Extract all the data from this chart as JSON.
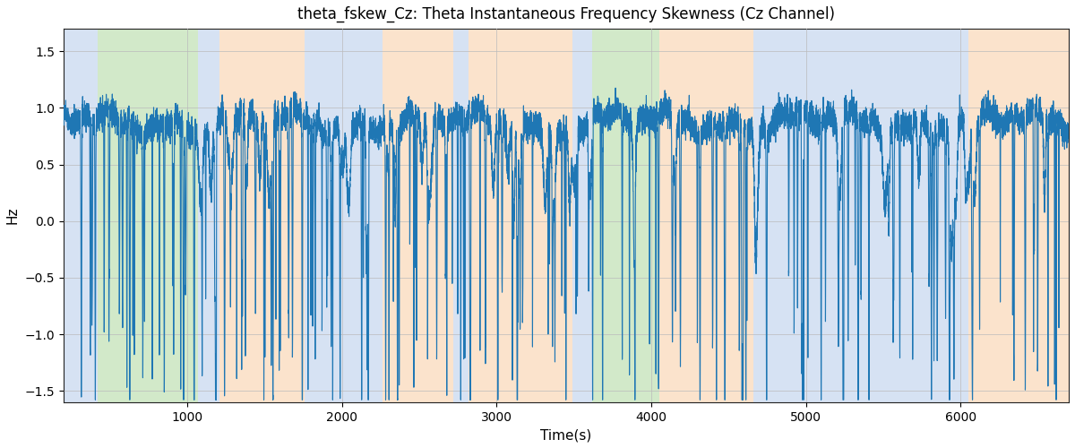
{
  "title": "theta_fskew_Cz: Theta Instantaneous Frequency Skewness (Cz Channel)",
  "xlabel": "Time(s)",
  "ylabel": "Hz",
  "ylim": [
    -1.6,
    1.7
  ],
  "xlim": [
    200,
    6700
  ],
  "line_color": "#1f77b4",
  "line_width": 0.8,
  "background_color": "#ffffff",
  "grid_color": "#bbbbbb",
  "bands": [
    {
      "xmin": 200,
      "xmax": 420,
      "color": "#aec6e8",
      "alpha": 0.5
    },
    {
      "xmin": 420,
      "xmax": 1070,
      "color": "#90c878",
      "alpha": 0.4
    },
    {
      "xmin": 1070,
      "xmax": 1210,
      "color": "#aec6e8",
      "alpha": 0.5
    },
    {
      "xmin": 1210,
      "xmax": 1760,
      "color": "#f9c89a",
      "alpha": 0.5
    },
    {
      "xmin": 1760,
      "xmax": 2260,
      "color": "#aec6e8",
      "alpha": 0.5
    },
    {
      "xmin": 2260,
      "xmax": 2720,
      "color": "#f9c89a",
      "alpha": 0.5
    },
    {
      "xmin": 2720,
      "xmax": 2820,
      "color": "#aec6e8",
      "alpha": 0.5
    },
    {
      "xmin": 2820,
      "xmax": 3490,
      "color": "#f9c89a",
      "alpha": 0.5
    },
    {
      "xmin": 3490,
      "xmax": 3620,
      "color": "#aec6e8",
      "alpha": 0.5
    },
    {
      "xmin": 3620,
      "xmax": 4050,
      "color": "#90c878",
      "alpha": 0.4
    },
    {
      "xmin": 4050,
      "xmax": 4660,
      "color": "#f9c89a",
      "alpha": 0.5
    },
    {
      "xmin": 4660,
      "xmax": 6050,
      "color": "#aec6e8",
      "alpha": 0.5
    },
    {
      "xmin": 6050,
      "xmax": 6700,
      "color": "#f9c89a",
      "alpha": 0.5
    }
  ],
  "yticks": [
    -1.5,
    -1.0,
    -0.5,
    0.0,
    0.5,
    1.0,
    1.5
  ],
  "xticks": [
    1000,
    2000,
    3000,
    4000,
    5000,
    6000
  ]
}
